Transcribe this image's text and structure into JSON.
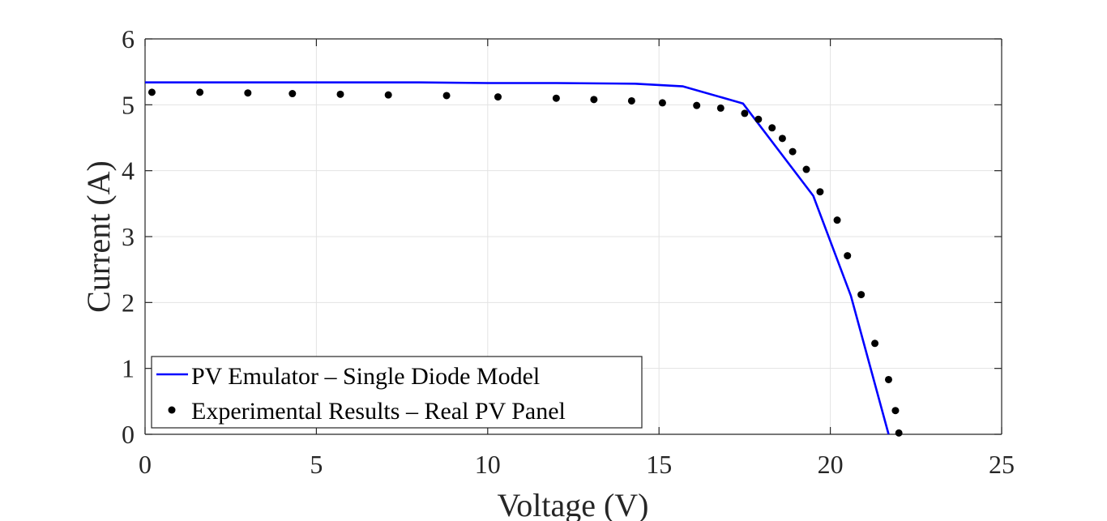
{
  "chart_data": {
    "type": "line",
    "xlabel": "Voltage (V)",
    "ylabel": "Current (A)",
    "xlim": [
      0,
      25
    ],
    "ylim": [
      0,
      6
    ],
    "xticks": [
      0,
      5,
      10,
      15,
      20,
      25
    ],
    "yticks": [
      0,
      1,
      2,
      3,
      4,
      5,
      6
    ],
    "grid": true,
    "legend_position": "bottom-left",
    "series": [
      {
        "name": "PV Emulator – Single Diode Model",
        "style": "line",
        "color": "#0000ff",
        "x": [
          0,
          2,
          4,
          6,
          8,
          10,
          12,
          14.3,
          15.7,
          17.45,
          19.5,
          20.6,
          21.7
        ],
        "y": [
          5.34,
          5.34,
          5.34,
          5.34,
          5.34,
          5.33,
          5.33,
          5.32,
          5.28,
          5.02,
          3.62,
          2.1,
          0.0
        ]
      },
      {
        "name": "Experimental Results – Real PV Panel",
        "style": "markers",
        "color": "#000000",
        "x": [
          0.2,
          1.6,
          3.0,
          4.3,
          5.7,
          7.1,
          8.8,
          10.3,
          12.0,
          13.1,
          14.2,
          15.1,
          16.1,
          16.8,
          17.5,
          17.9,
          18.3,
          18.6,
          18.9,
          19.3,
          19.7,
          20.2,
          20.5,
          20.9,
          21.3,
          21.7,
          21.9,
          22.0
        ],
        "y": [
          5.19,
          5.19,
          5.18,
          5.17,
          5.16,
          5.15,
          5.14,
          5.12,
          5.1,
          5.08,
          5.06,
          5.03,
          4.99,
          4.95,
          4.87,
          4.78,
          4.65,
          4.49,
          4.29,
          4.02,
          3.68,
          3.25,
          2.71,
          2.12,
          1.38,
          0.83,
          0.36,
          0.02
        ]
      }
    ]
  }
}
